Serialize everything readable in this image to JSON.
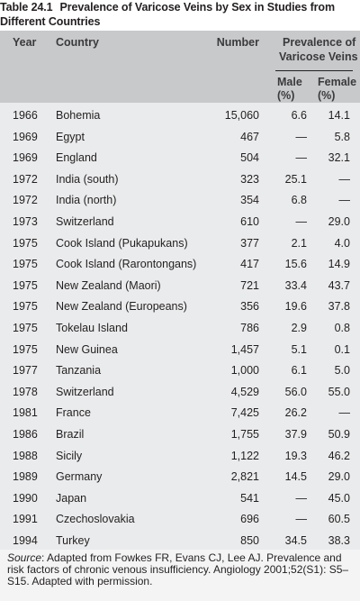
{
  "table": {
    "number": "Table 24.1",
    "title": "Prevalence of Varicose Veins by Sex in Studies from Different Countries",
    "headers": {
      "year": "Year",
      "country": "Country",
      "number": "Number",
      "prevalence_line1": "Prevalence of",
      "prevalence_line2": "Varicose Veins",
      "male_line1": "Male",
      "male_line2": "(%)",
      "female_line1": "Female",
      "female_line2": "(%)"
    },
    "rows": [
      {
        "year": "1966",
        "country": "Bohemia",
        "number": "15,060",
        "male": "6.6",
        "female": "14.1"
      },
      {
        "year": "1969",
        "country": "Egypt",
        "number": "467",
        "male": "—",
        "female": "5.8"
      },
      {
        "year": "1969",
        "country": "England",
        "number": "504",
        "male": "—",
        "female": "32.1"
      },
      {
        "year": "1972",
        "country": "India (south)",
        "number": "323",
        "male": "25.1",
        "female": "—"
      },
      {
        "year": "1972",
        "country": "India (north)",
        "number": "354",
        "male": "6.8",
        "female": "—"
      },
      {
        "year": "1973",
        "country": "Switzerland",
        "number": "610",
        "male": "—",
        "female": "29.0"
      },
      {
        "year": "1975",
        "country": "Cook Island (Pukapukans)",
        "number": "377",
        "male": "2.1",
        "female": "4.0"
      },
      {
        "year": "1975",
        "country": "Cook Island (Rarontongans)",
        "number": "417",
        "male": "15.6",
        "female": "14.9"
      },
      {
        "year": "1975",
        "country": "New Zealand (Maori)",
        "number": "721",
        "male": "33.4",
        "female": "43.7"
      },
      {
        "year": "1975",
        "country": "New Zealand (Europeans)",
        "number": "356",
        "male": "19.6",
        "female": "37.8"
      },
      {
        "year": "1975",
        "country": "Tokelau Island",
        "number": "786",
        "male": "2.9",
        "female": "0.8"
      },
      {
        "year": "1975",
        "country": "New Guinea",
        "number": "1,457",
        "male": "5.1",
        "female": "0.1"
      },
      {
        "year": "1977",
        "country": "Tanzania",
        "number": "1,000",
        "male": "6.1",
        "female": "5.0"
      },
      {
        "year": "1978",
        "country": "Switzerland",
        "number": "4,529",
        "male": "56.0",
        "female": "55.0"
      },
      {
        "year": "1981",
        "country": "France",
        "number": "7,425",
        "male": "26.2",
        "female": "—"
      },
      {
        "year": "1986",
        "country": "Brazil",
        "number": "1,755",
        "male": "37.9",
        "female": "50.9"
      },
      {
        "year": "1988",
        "country": "Sicily",
        "number": "1,122",
        "male": "19.3",
        "female": "46.2"
      },
      {
        "year": "1989",
        "country": "Germany",
        "number": "2,821",
        "male": "14.5",
        "female": "29.0"
      },
      {
        "year": "1990",
        "country": "Japan",
        "number": "541",
        "male": "—",
        "female": "45.0"
      },
      {
        "year": "1991",
        "country": "Czechoslovakia",
        "number": "696",
        "male": "—",
        "female": "60.5"
      },
      {
        "year": "1994",
        "country": "Turkey",
        "number": "850",
        "male": "34.5",
        "female": "38.3"
      }
    ],
    "source": {
      "label": "Source",
      "text": ": Adapted from Fowkes FR, Evans CJ, Lee AJ. Prevalence and risk factors of chronic venous insufficiency. Angiology 2001;52(S1): S5–S15. Adapted with permission."
    }
  }
}
